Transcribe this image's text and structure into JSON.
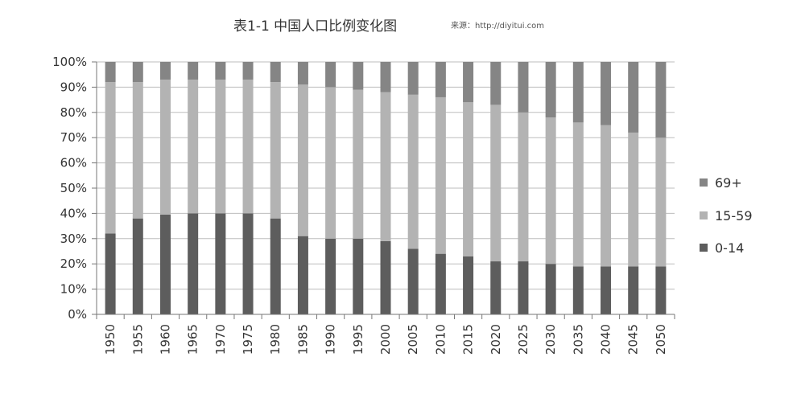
{
  "chart_data": {
    "type": "bar",
    "stacked": true,
    "title": "表1-1 中国人口比例变化图",
    "watermark": "来源：http://diyitui.com",
    "xlabel": "",
    "ylabel": "",
    "ylim": [
      0,
      100
    ],
    "y_unit": "%",
    "y_ticks": [
      "0%",
      "10%",
      "20%",
      "30%",
      "40%",
      "50%",
      "60%",
      "70%",
      "80%",
      "90%",
      "100%"
    ],
    "gridlines": true,
    "legend_position": "right",
    "categories": [
      "1950",
      "1955",
      "1960",
      "1965",
      "1970",
      "1975",
      "1980",
      "1985",
      "1990",
      "1995",
      "2000",
      "2005",
      "2010",
      "2015",
      "2020",
      "2025",
      "2030",
      "2035",
      "2040",
      "2045",
      "2050"
    ],
    "series": [
      {
        "name": "0-14",
        "color": "#5d5d5d",
        "values": [
          32,
          38,
          39.5,
          40,
          40,
          40,
          38,
          31,
          30,
          30,
          29,
          26,
          24,
          23,
          21,
          21,
          20,
          19,
          19,
          19,
          19
        ]
      },
      {
        "name": "15-59",
        "color": "#b3b3b3",
        "values": [
          60,
          54,
          53.5,
          53,
          53,
          53,
          54,
          60,
          60,
          59,
          59,
          61,
          62,
          61,
          62,
          59,
          58,
          57,
          56,
          53,
          51
        ]
      },
      {
        "name": "69+",
        "color": "#858585",
        "values": [
          8,
          8,
          7,
          7,
          7,
          7,
          8,
          9,
          10,
          11,
          12,
          13,
          14,
          16,
          17,
          20,
          22,
          24,
          25,
          28,
          30
        ]
      }
    ],
    "legend_order": [
      "69+",
      "15-59",
      "0-14"
    ]
  }
}
